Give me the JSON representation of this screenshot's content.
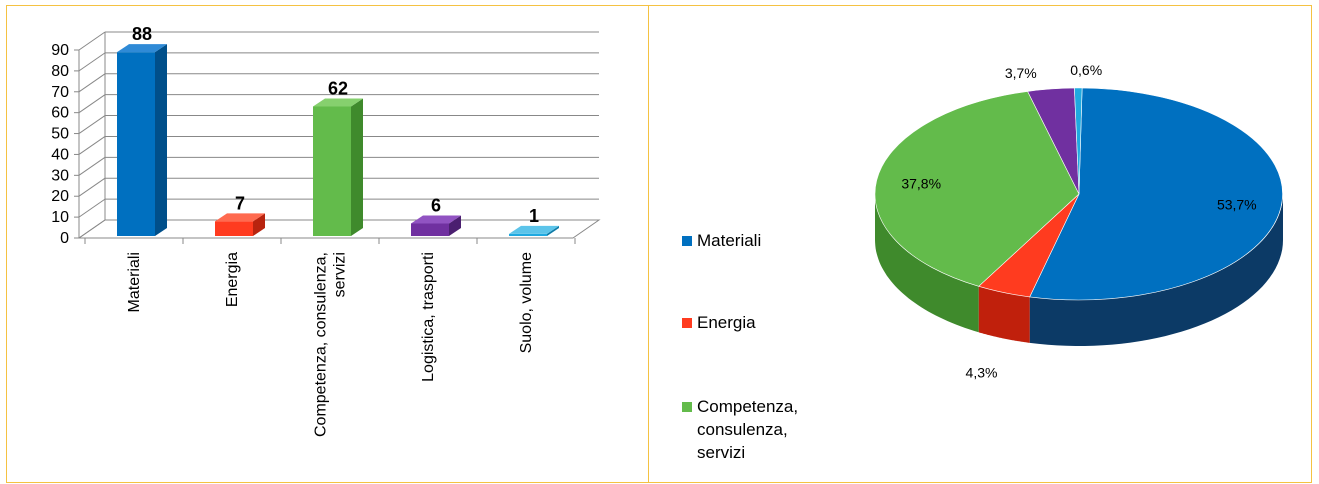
{
  "bar_chart": {
    "type": "bar",
    "categories": [
      "Materiali",
      "Energia",
      "Competenza, consulenza, servizi",
      "Logistica, trasporti",
      "Suolo, volume"
    ],
    "category_lines": [
      [
        "Materiali"
      ],
      [
        "Energia"
      ],
      [
        "Competenza, consulenza,",
        "servizi"
      ],
      [
        "Logistica, trasporti"
      ],
      [
        "Suolo, volume"
      ]
    ],
    "values": [
      88,
      7,
      62,
      6,
      1
    ],
    "value_labels": [
      "88",
      "7",
      "62",
      "6",
      "1"
    ],
    "yticks": [
      0,
      10,
      20,
      30,
      40,
      50,
      60,
      70,
      80,
      90
    ],
    "ytick_labels": [
      "0",
      "10",
      "20",
      "30",
      "40",
      "50",
      "60",
      "70",
      "80",
      "90"
    ],
    "ylim": [
      0,
      90
    ],
    "colors": [
      "#0070c0",
      "#ff3b1f",
      "#63bb4b",
      "#7030a0",
      "#1fa9e0"
    ],
    "dark_colors": [
      "#004f8a",
      "#b8240f",
      "#3f8a2c",
      "#4b1f70",
      "#0e7aa6"
    ],
    "top_colors": [
      "#2f8ad6",
      "#ff6a4f",
      "#86d06e",
      "#9153c2",
      "#5cc4ea"
    ],
    "grid": true
  },
  "pie_chart": {
    "type": "pie",
    "slices": [
      {
        "name": "Materiali",
        "value": 53.7,
        "label": "53,7%",
        "color": "#0070c0",
        "side": "#0c3a66"
      },
      {
        "name": "Energia",
        "value": 4.3,
        "label": "4,3%",
        "color": "#ff3b1f",
        "side": "#c0200c"
      },
      {
        "name": "Competenza, consulenza, servizi",
        "value": 37.8,
        "label": "37,8%",
        "color": "#63bb4b",
        "side": "#3f8a2c"
      },
      {
        "name": "Logistica, trasporti",
        "value": 3.7,
        "label": "3,7%",
        "color": "#7030a0",
        "side": "#4b1f70"
      },
      {
        "name": "Suolo, volume",
        "value": 0.6,
        "label": "0,6%",
        "color": "#1fa9e0",
        "side": "#0e7aa6"
      }
    ],
    "legend": [
      {
        "lines": [
          "Materiali"
        ],
        "color": "#0070c0"
      },
      {
        "lines": [
          "Energia"
        ],
        "color": "#ff3b1f"
      },
      {
        "lines": [
          "Competenza,",
          "consulenza,",
          "servizi"
        ],
        "color": "#63bb4b"
      }
    ]
  }
}
